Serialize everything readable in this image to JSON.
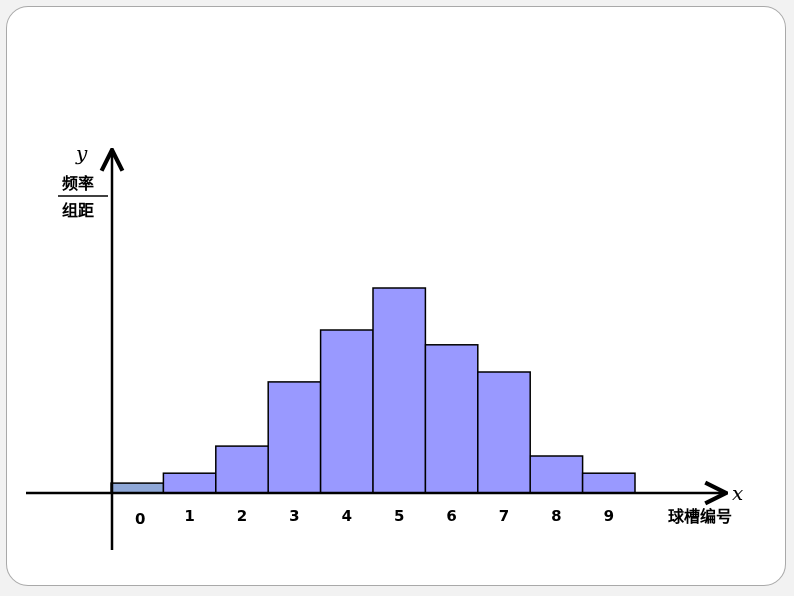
{
  "chart_data": {
    "type": "bar",
    "categories": [
      "0",
      "1",
      "2",
      "3",
      "4",
      "5",
      "6",
      "7",
      "8",
      "9"
    ],
    "values": [
      0.4,
      0.8,
      1.9,
      4.5,
      6.6,
      8.3,
      6.0,
      4.9,
      1.5,
      0.8
    ],
    "xlabel": "球槽编号",
    "ylabel_numerator": "频率",
    "ylabel_denominator": "组距",
    "x_var": "x",
    "y_var": "y",
    "ylim": [
      0,
      9
    ],
    "grid": false,
    "colors": {
      "bar_fill": "#9999ff",
      "first_bar_fill": "#8fa8d8",
      "bar_stroke": "#000000"
    }
  }
}
